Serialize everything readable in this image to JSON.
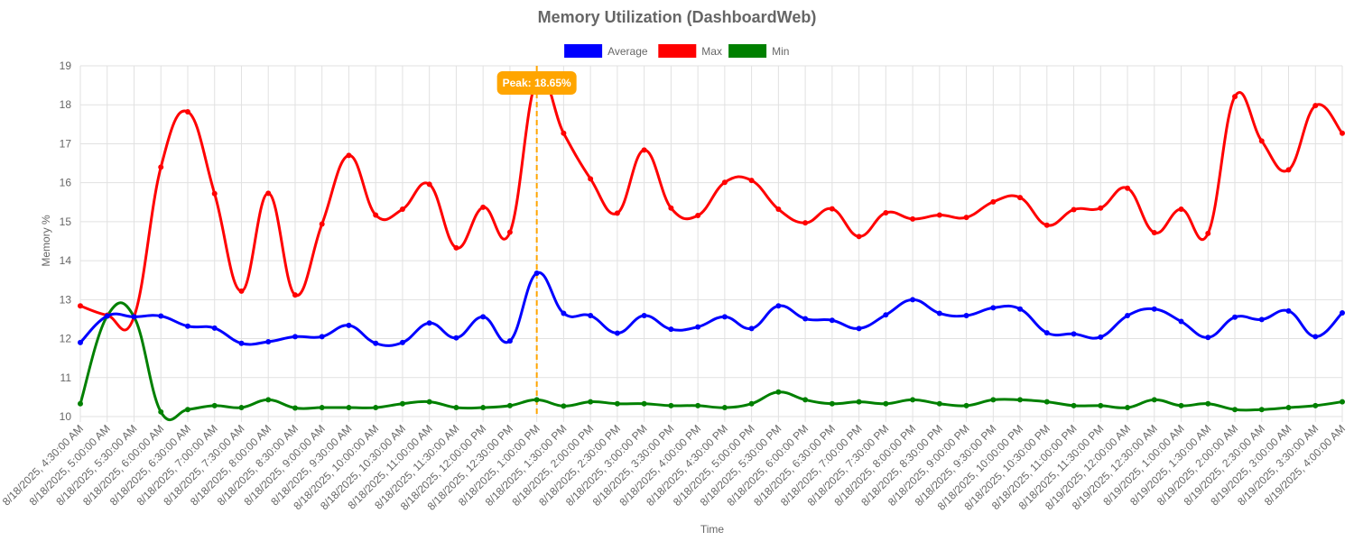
{
  "chart_data": {
    "type": "line",
    "title": "Memory Utilization (DashboardWeb)",
    "xlabel": "Time",
    "ylabel": "Memory %",
    "ylim": [
      10,
      19
    ],
    "yticks": [
      10,
      11,
      12,
      13,
      14,
      15,
      16,
      17,
      18,
      19
    ],
    "grid": true,
    "legend_position": "top",
    "categories": [
      "8/18/2025, 4:30:00 AM",
      "8/18/2025, 5:00:00 AM",
      "8/18/2025, 5:30:00 AM",
      "8/18/2025, 6:00:00 AM",
      "8/18/2025, 6:30:00 AM",
      "8/18/2025, 7:00:00 AM",
      "8/18/2025, 7:30:00 AM",
      "8/18/2025, 8:00:00 AM",
      "8/18/2025, 8:30:00 AM",
      "8/18/2025, 9:00:00 AM",
      "8/18/2025, 9:30:00 AM",
      "8/18/2025, 10:00:00 AM",
      "8/18/2025, 10:30:00 AM",
      "8/18/2025, 11:00:00 AM",
      "8/18/2025, 11:30:00 AM",
      "8/18/2025, 12:00:00 PM",
      "8/18/2025, 12:30:00 PM",
      "8/18/2025, 1:00:00 PM",
      "8/18/2025, 1:30:00 PM",
      "8/18/2025, 2:00:00 PM",
      "8/18/2025, 2:30:00 PM",
      "8/18/2025, 3:00:00 PM",
      "8/18/2025, 3:30:00 PM",
      "8/18/2025, 4:00:00 PM",
      "8/18/2025, 4:30:00 PM",
      "8/18/2025, 5:00:00 PM",
      "8/18/2025, 5:30:00 PM",
      "8/18/2025, 6:00:00 PM",
      "8/18/2025, 6:30:00 PM",
      "8/18/2025, 7:00:00 PM",
      "8/18/2025, 7:30:00 PM",
      "8/18/2025, 8:00:00 PM",
      "8/18/2025, 8:30:00 PM",
      "8/18/2025, 9:00:00 PM",
      "8/18/2025, 9:30:00 PM",
      "8/18/2025, 10:00:00 PM",
      "8/18/2025, 10:30:00 PM",
      "8/18/2025, 11:00:00 PM",
      "8/18/2025, 11:30:00 PM",
      "8/19/2025, 12:00:00 AM",
      "8/19/2025, 12:30:00 AM",
      "8/19/2025, 1:00:00 AM",
      "8/19/2025, 1:30:00 AM",
      "8/19/2025, 2:00:00 AM",
      "8/19/2025, 2:30:00 AM",
      "8/19/2025, 3:00:00 AM",
      "8/19/2025, 3:30:00 AM",
      "8/19/2025, 4:00:00 AM"
    ],
    "series": [
      {
        "name": "Average",
        "color": "#0000ff",
        "values": [
          11.9,
          12.58,
          12.56,
          12.58,
          12.32,
          12.27,
          11.88,
          11.92,
          12.05,
          12.05,
          12.34,
          11.88,
          11.9,
          12.4,
          12.02,
          12.56,
          11.94,
          13.68,
          12.65,
          12.59,
          12.14,
          12.59,
          12.24,
          12.3,
          12.56,
          12.26,
          12.84,
          12.51,
          12.47,
          12.26,
          12.61,
          13.0,
          12.65,
          12.59,
          12.79,
          12.76,
          12.15,
          12.12,
          12.04,
          12.59,
          12.76,
          12.44,
          12.03,
          12.55,
          12.49,
          12.71,
          12.05,
          12.66
        ]
      },
      {
        "name": "Max",
        "color": "#ff0000",
        "values": [
          12.84,
          12.6,
          12.56,
          16.4,
          17.82,
          15.72,
          13.22,
          15.73,
          13.12,
          14.94,
          16.7,
          15.17,
          15.32,
          15.96,
          14.33,
          15.37,
          14.73,
          18.65,
          17.27,
          16.1,
          15.22,
          16.84,
          15.35,
          15.16,
          16.01,
          16.06,
          15.32,
          14.97,
          15.33,
          14.62,
          15.23,
          15.07,
          15.17,
          15.11,
          15.51,
          15.62,
          14.91,
          15.31,
          15.35,
          15.86,
          14.72,
          15.32,
          14.7,
          18.21,
          17.07,
          16.33,
          17.98,
          17.27
        ]
      },
      {
        "name": "Min",
        "color": "#008000",
        "values": [
          10.33,
          12.58,
          12.56,
          10.12,
          10.18,
          10.28,
          10.23,
          10.43,
          10.22,
          10.23,
          10.23,
          10.23,
          10.33,
          10.38,
          10.23,
          10.23,
          10.28,
          10.43,
          10.27,
          10.38,
          10.33,
          10.33,
          10.28,
          10.28,
          10.23,
          10.33,
          10.63,
          10.43,
          10.33,
          10.38,
          10.33,
          10.43,
          10.33,
          10.28,
          10.43,
          10.43,
          10.38,
          10.28,
          10.28,
          10.23,
          10.43,
          10.28,
          10.33,
          10.18,
          10.18,
          10.23,
          10.28,
          10.38
        ]
      }
    ],
    "annotation": {
      "label": "Peak: 18.65%",
      "category_index": 17,
      "color": "#ffa500"
    }
  }
}
